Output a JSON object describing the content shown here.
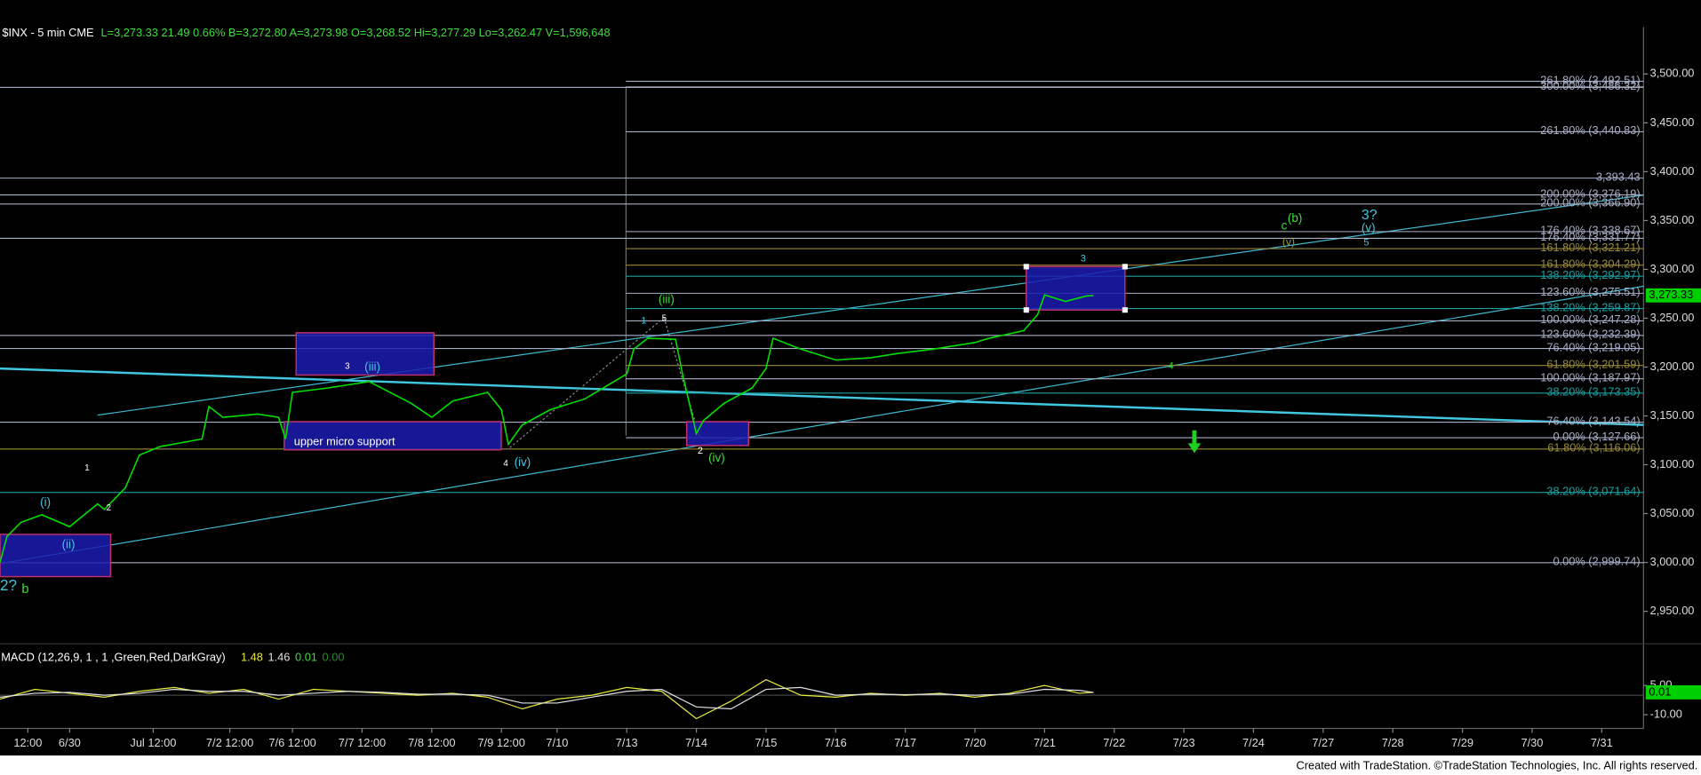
{
  "chart_data": {
    "type": "line",
    "symbol": "$INX - 5 min  CME",
    "quote": "L=3,273.33 21.49 0.66% B=3,272.80 A=3,273.98 O=3,268.52 Hi=3,277.29 Lo=3,262.47 V=1,596,648",
    "last_label": "3,273.33",
    "footer": "Created with TradeStation. ©TradeStation Technologies, Inc. All rights reserved.",
    "xlim": [
      0,
      23.6
    ],
    "xticks": [
      {
        "value": 0.4,
        "label": "12:00"
      },
      {
        "value": 1.0,
        "label": "6/30"
      },
      {
        "value": 2.2,
        "label": "Jul 12:00"
      },
      {
        "value": 3.3,
        "label": "7/2 12:00"
      },
      {
        "value": 4.2,
        "label": "7/6 12:00"
      },
      {
        "value": 5.2,
        "label": "7/7 12:00"
      },
      {
        "value": 6.2,
        "label": "7/8 12:00"
      },
      {
        "value": 7.2,
        "label": "7/9 12:00"
      },
      {
        "value": 8.0,
        "label": "7/10"
      },
      {
        "value": 9,
        "label": "7/13"
      },
      {
        "value": 10,
        "label": "7/14"
      },
      {
        "value": 11,
        "label": "7/15"
      },
      {
        "value": 12,
        "label": "7/16"
      },
      {
        "value": 13,
        "label": "7/17"
      },
      {
        "value": 14,
        "label": "7/20"
      },
      {
        "value": 15,
        "label": "7/21"
      },
      {
        "value": 16,
        "label": "7/22"
      },
      {
        "value": 17,
        "label": "7/23"
      },
      {
        "value": 18,
        "label": "7/24"
      },
      {
        "value": 19,
        "label": "7/27"
      },
      {
        "value": 20,
        "label": "7/28"
      },
      {
        "value": 21,
        "label": "7/29"
      },
      {
        "value": 22,
        "label": "7/30"
      },
      {
        "value": 23,
        "label": "7/31"
      }
    ],
    "ylim": [
      2920,
      3548
    ],
    "yticks": [
      {
        "value": 2950,
        "label": "2,950.00"
      },
      {
        "value": 3000,
        "label": "3,000.00"
      },
      {
        "value": 3050,
        "label": "3,050.00"
      },
      {
        "value": 3100,
        "label": "3,100.00"
      },
      {
        "value": 3150,
        "label": "3,150.00"
      },
      {
        "value": 3200,
        "label": "3,200.00"
      },
      {
        "value": 3250,
        "label": "3,250.00"
      },
      {
        "value": 3300,
        "label": "3,300.00"
      },
      {
        "value": 3350,
        "label": "3,350.00"
      },
      {
        "value": 3400,
        "label": "3,400.00"
      },
      {
        "value": 3450,
        "label": "3,450.00"
      },
      {
        "value": 3500,
        "label": "3,500.00"
      }
    ],
    "series": [
      {
        "name": "$INX",
        "color": "#00e000",
        "x": [
          0.0,
          0.1,
          0.3,
          0.6,
          1.0,
          1.4,
          1.5,
          1.8,
          2.0,
          2.3,
          2.9,
          3.0,
          3.2,
          3.7,
          4.0,
          4.1,
          4.2,
          4.7,
          5.3,
          5.9,
          6.2,
          6.5,
          7.0,
          7.2,
          7.3,
          7.5,
          7.9,
          8.4,
          9.0,
          9.1,
          9.3,
          9.7,
          9.8,
          10.0,
          10.1,
          10.4,
          10.8,
          11.0,
          11.1,
          11.5,
          12.0,
          12.5,
          12.9,
          13.4,
          14.0,
          14.2,
          14.7,
          14.9,
          15.0,
          15.3,
          15.6,
          15.7
        ],
        "values": [
          3000,
          3026.6,
          3041,
          3048.8,
          3036.6,
          3059.9,
          3054.3,
          3076.5,
          3109.8,
          3118.6,
          3126.4,
          3159.7,
          3148.6,
          3151.9,
          3148.6,
          3126.4,
          3174.1,
          3178.5,
          3185.2,
          3163,
          3148.6,
          3165.2,
          3174.1,
          3156.3,
          3120.9,
          3140.8,
          3156.3,
          3167.4,
          3192.9,
          3218.4,
          3229.5,
          3228.4,
          3192.9,
          3131.9,
          3145.2,
          3163,
          3178.5,
          3198.5,
          3229.5,
          3218.4,
          3207.3,
          3209.5,
          3214,
          3218.4,
          3225.1,
          3229.5,
          3237.3,
          3253.9,
          3273.8,
          3267.2,
          3272.7,
          3273.33
        ]
      }
    ],
    "levels": [
      {
        "label": "261.80% (3,492.51)",
        "value": 3492.51,
        "color": "#a8b0c8"
      },
      {
        "label": "300.00% (3,486.32)",
        "value": 3486.32,
        "color": "#a8b0c8"
      },
      {
        "label": "261.80% (3,440.83)",
        "value": 3440.83,
        "color": "#a8b0c8"
      },
      {
        "label": "3,393.43",
        "value": 3393.43,
        "color": "#a8b0c8"
      },
      {
        "label": "200.00% (3,376.19)",
        "value": 3376.19,
        "color": "#a8b0c8"
      },
      {
        "label": "200.00% (3,366.90)",
        "value": 3366.9,
        "color": "#a8b0c8"
      },
      {
        "label": "176.40% (3,338.67)",
        "value": 3338.67,
        "color": "#a8b0c8"
      },
      {
        "label": "176.40% (3,331.77)",
        "value": 3331.77,
        "color": "#a8b0c8"
      },
      {
        "label": "161.80% (3,321.21)",
        "value": 3321.21,
        "color": "#9a8a3a"
      },
      {
        "label": "161.80% (3,304.29)",
        "value": 3304.29,
        "color": "#9a8a3a"
      },
      {
        "label": "138.20% (3,292.97)",
        "value": 3292.97,
        "color": "#1aa0a0"
      },
      {
        "label": "123.60% (3,275.51)",
        "value": 3275.51,
        "color": "#a8b0c8"
      },
      {
        "label": "138.20% (3,259.87)",
        "value": 3259.87,
        "color": "#1aa0a0"
      },
      {
        "label": "100.00% (3,247.28)",
        "value": 3247.28,
        "color": "#a8b0c8"
      },
      {
        "label": "123.60% (3,232.39)",
        "value": 3232.39,
        "color": "#a8b0c8"
      },
      {
        "label": "76.40% (3,219.05)",
        "value": 3219.05,
        "color": "#a8b0c8"
      },
      {
        "label": "61.80% (3,201.59)",
        "value": 3201.59,
        "color": "#9a8a3a"
      },
      {
        "label": "100.00% (3,187.97)",
        "value": 3187.97,
        "color": "#a8b0c8"
      },
      {
        "label": "38.20% (3,173.35)",
        "value": 3173.35,
        "color": "#1aa0a0"
      },
      {
        "label": "76.40% (3,143.54)",
        "value": 3143.54,
        "color": "#a8b0c8"
      },
      {
        "label": "0.00% (3,127.66)",
        "value": 3127.66,
        "color": "#a8b0c8"
      },
      {
        "label": "61.80% (3,116.06)",
        "value": 3116.06,
        "color": "#9a8a3a"
      },
      {
        "label": "38.20% (3,071.64)",
        "value": 3071.64,
        "color": "#1aa0a0"
      },
      {
        "label": "0.00% (2,999.74)",
        "value": 2999.74,
        "color": "#a8b0c8"
      }
    ],
    "annotations": [
      "2?",
      "b",
      "(i)",
      "(ii)",
      "1",
      "2",
      "3",
      "(iii)",
      "upper micro support",
      "4",
      "(iv)",
      "1",
      "5",
      "(iii)",
      "2",
      "(iv)",
      "3",
      "4",
      "c",
      "(b)",
      "(v)",
      "3?",
      "(v)",
      "5"
    ],
    "macd": {
      "title": "MACD (12,26,9, 1 , 1 ,Green,Red,DarkGray)",
      "readouts": [
        "1.48",
        "1.46",
        "0.01",
        "0.00"
      ],
      "ylim": [
        -17,
        23
      ],
      "yticks": [
        {
          "value": 5,
          "label": "5.00"
        },
        {
          "value": -10,
          "label": "-10.00"
        }
      ],
      "x": [
        0,
        0.5,
        1,
        1.5,
        2,
        2.5,
        3,
        3.5,
        4,
        4.5,
        5,
        5.5,
        6,
        6.5,
        7,
        7.5,
        8,
        8.5,
        9,
        9.5,
        10,
        10.5,
        11,
        11.5,
        12,
        12.5,
        13,
        13.5,
        14,
        14.5,
        15,
        15.5,
        15.7
      ],
      "series": [
        {
          "name": "MACD",
          "color": "#e8e840",
          "values": [
            -2,
            3,
            1,
            -1,
            2,
            4,
            1,
            3,
            -2,
            3,
            2,
            1,
            0,
            1,
            -1,
            -7,
            -2,
            0,
            4,
            2,
            -12,
            -3,
            8,
            0,
            -1,
            1,
            0,
            1,
            -1,
            1,
            5,
            1,
            1.48
          ]
        },
        {
          "name": "MACDAvg",
          "color": "#e0e0e0",
          "values": [
            -1,
            1,
            1.5,
            0,
            1,
            3,
            2,
            2,
            0,
            1,
            2,
            1.5,
            0.5,
            0.5,
            0,
            -4,
            -4,
            -1,
            2,
            3,
            -6,
            -7,
            3,
            4,
            0,
            0.5,
            0.3,
            0.5,
            0,
            0.5,
            3,
            2.5,
            1.46
          ]
        }
      ]
    }
  }
}
